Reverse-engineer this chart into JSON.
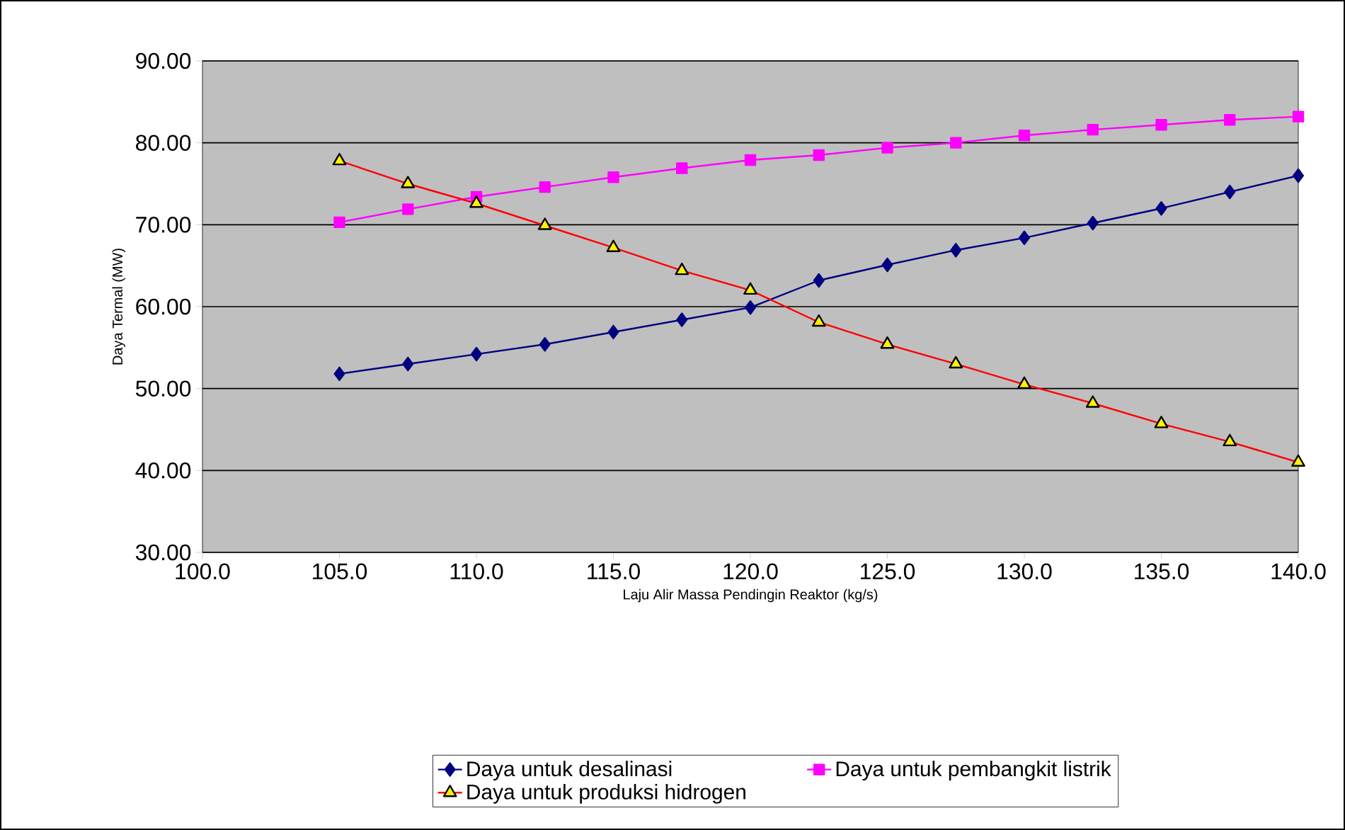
{
  "chart_data": {
    "type": "line",
    "xlabel": "Laju Alir Massa Pendingin Reaktor (kg/s)",
    "ylabel": "Daya Termal (MW)",
    "x": [
      105,
      107.5,
      110,
      112.5,
      115,
      117.5,
      120,
      122.5,
      125,
      127.5,
      130,
      132.5,
      135,
      137.5,
      140
    ],
    "series": [
      {
        "name": "Daya untuk desalinasi",
        "color": "#000080",
        "marker": "diamond",
        "values": [
          51.8,
          53.0,
          54.2,
          55.4,
          56.9,
          58.4,
          59.9,
          63.2,
          65.1,
          66.9,
          68.4,
          70.2,
          72.0,
          74.0,
          76.0
        ]
      },
      {
        "name": "Daya untuk pembangkit listrik",
        "color": "#ff00ff",
        "marker": "square",
        "values": [
          70.3,
          71.9,
          73.4,
          74.6,
          75.8,
          76.9,
          77.9,
          78.5,
          79.4,
          80.0,
          80.9,
          81.6,
          82.2,
          82.8,
          83.2
        ]
      },
      {
        "name": "Daya untuk produksi hidrogen",
        "color": "#ff0000",
        "marker": "triangle",
        "values": [
          77.8,
          75.0,
          72.6,
          69.9,
          67.2,
          64.4,
          62.0,
          58.1,
          55.4,
          53.0,
          50.5,
          48.2,
          45.7,
          43.5,
          41.0
        ]
      }
    ],
    "xlim": [
      100,
      140
    ],
    "ylim": [
      30,
      90
    ],
    "xticks": [
      {
        "value": 100,
        "label": "100.0"
      },
      {
        "value": 105,
        "label": "105.0"
      },
      {
        "value": 110,
        "label": "110.0"
      },
      {
        "value": 115,
        "label": "115.0"
      },
      {
        "value": 120,
        "label": "120.0"
      },
      {
        "value": 125,
        "label": "125.0"
      },
      {
        "value": 130,
        "label": "130.0"
      },
      {
        "value": 135,
        "label": "135.0"
      },
      {
        "value": 140,
        "label": "140.0"
      }
    ],
    "yticks": [
      {
        "value": 30,
        "label": "30.00"
      },
      {
        "value": 40,
        "label": "40.00"
      },
      {
        "value": 50,
        "label": "50.00"
      },
      {
        "value": 60,
        "label": "60.00"
      },
      {
        "value": 70,
        "label": "70.00"
      },
      {
        "value": 80,
        "label": "80.00"
      },
      {
        "value": 90,
        "label": "90.00"
      }
    ],
    "grid": "y",
    "legend": "bottom"
  }
}
